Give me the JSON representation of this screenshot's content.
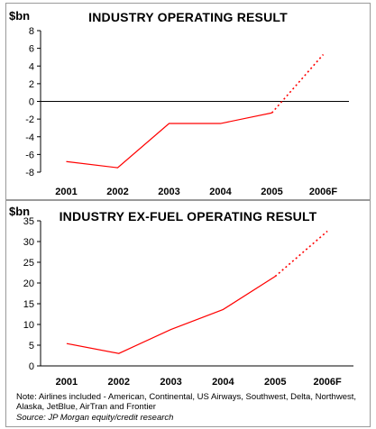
{
  "chart_data": [
    {
      "type": "line",
      "title": "INDUSTRY OPERATING RESULT",
      "ylabel": "$bn",
      "categories": [
        "2001",
        "2002",
        "2003",
        "2004",
        "2005",
        "2006F"
      ],
      "series": [
        {
          "values": [
            -6.8,
            -7.5,
            -2.5,
            -2.5,
            -1.3,
            5.3
          ],
          "forecast_from_index": 4
        }
      ],
      "ylim": [
        -8,
        8
      ],
      "yticks": [
        8,
        6,
        4,
        2,
        0,
        -2,
        -4,
        -6,
        -8
      ],
      "zero_line": true,
      "grid": false,
      "line_color": "#ff0000"
    },
    {
      "type": "line",
      "title": "INDUSTRY EX-FUEL OPERATING RESULT",
      "ylabel": "$bn",
      "categories": [
        "2001",
        "2002",
        "2003",
        "2004",
        "2005",
        "2006F"
      ],
      "series": [
        {
          "values": [
            5.4,
            3.0,
            8.8,
            13.6,
            21.6,
            32.5
          ],
          "forecast_from_index": 4
        }
      ],
      "ylim": [
        0,
        35
      ],
      "yticks": [
        35,
        30,
        25,
        20,
        15,
        10,
        5,
        0
      ],
      "zero_line": false,
      "grid": false,
      "line_color": "#ff0000"
    }
  ],
  "footer": {
    "note": "Note: Airlines included - American, Continental, US Airways, Southwest, Delta, Northwest, Alaska, JetBlue, AirTran and Frontier",
    "source": "Source: JP Morgan equity/credit research"
  }
}
